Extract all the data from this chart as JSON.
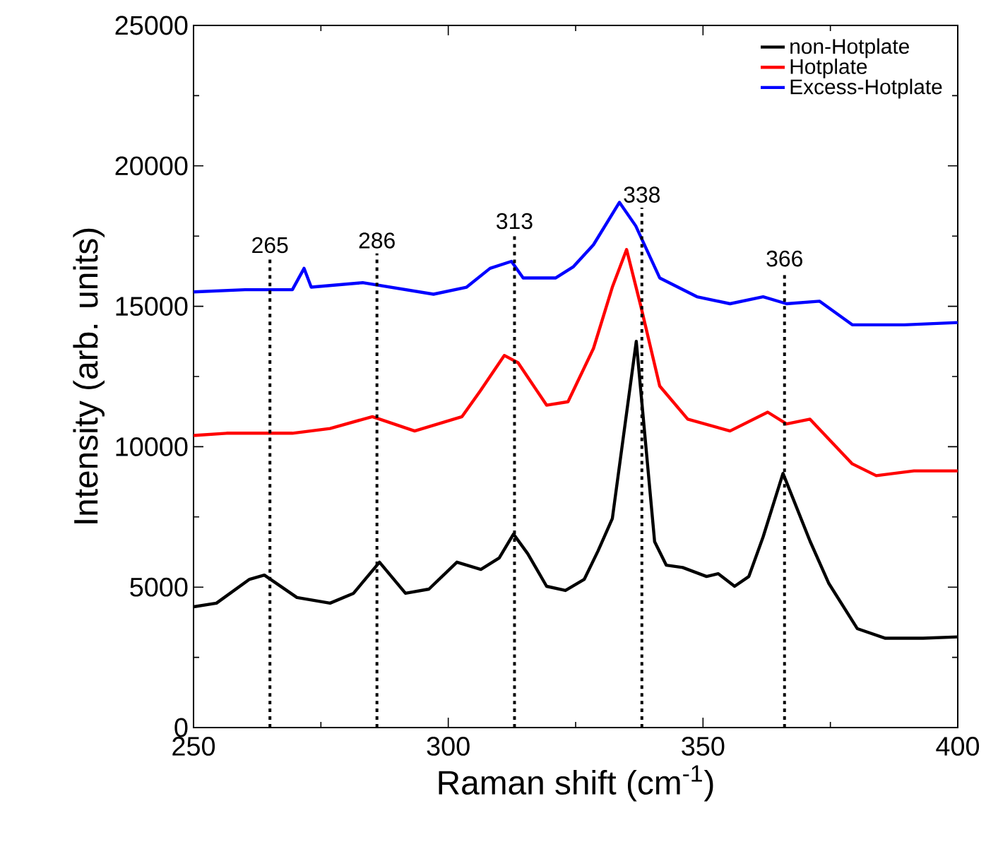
{
  "chart_data": {
    "type": "line",
    "xlabel": "Raman shift (cm$^{-1}$)",
    "ylabel": "Intensity (arb. units)",
    "xlim": [
      250,
      400
    ],
    "xticks": [
      250,
      300,
      350,
      400
    ],
    "ylim": [
      0,
      25000
    ],
    "yticks": [
      0,
      5000,
      10000,
      15000,
      20000,
      25000
    ],
    "grid": false,
    "legend": "top right",
    "marker": "none",
    "line_style": "solid",
    "series": [
      {
        "name": "non-Hotplate",
        "color": "#000000",
        "x": [
          250,
          254.5,
          261,
          263.9,
          270.3,
          276.8,
          281.4,
          286.5,
          291.6,
          296.2,
          301.7,
          306.4,
          310,
          312.8,
          315.6,
          319.3,
          323,
          326.7,
          329.4,
          332.2,
          336.9,
          340.5,
          342.8,
          346,
          350.7,
          353,
          356.2,
          359,
          361.8,
          365.7,
          371,
          374.7,
          380.3,
          385.8,
          393.2,
          400
        ],
        "values": [
          4300,
          4430,
          5280,
          5430,
          4630,
          4430,
          4780,
          5890,
          4780,
          4930,
          5890,
          5630,
          6040,
          6890,
          6190,
          5030,
          4880,
          5280,
          6290,
          7440,
          13750,
          6620,
          5780,
          5700,
          5380,
          5480,
          5030,
          5380,
          6790,
          9050,
          6640,
          5130,
          3520,
          3180,
          3180,
          3230
        ]
      },
      {
        "name": "Hotplate",
        "color": "#ff0000",
        "x": [
          250,
          256.5,
          269.4,
          276.8,
          285.1,
          293.4,
          302.7,
          306.3,
          311,
          313.7,
          319.3,
          323.5,
          328.5,
          332.2,
          335,
          337.8,
          341.5,
          347,
          355.3,
          362.7,
          366.4,
          371,
          379.3,
          384,
          391.4,
          400
        ],
        "values": [
          10400,
          10480,
          10480,
          10650,
          11070,
          10560,
          11070,
          11990,
          13250,
          12990,
          11480,
          11600,
          13500,
          15680,
          17020,
          15000,
          12160,
          10980,
          10560,
          11230,
          10810,
          10980,
          9390,
          8970,
          9140,
          9140
        ]
      },
      {
        "name": "Excess-Hotplate",
        "color": "#0000ff",
        "x": [
          250,
          260.1,
          269.4,
          271.7,
          273.1,
          283.2,
          297.1,
          303.6,
          308.2,
          312.4,
          314.7,
          321.1,
          324.5,
          328.5,
          333.6,
          336.8,
          341.5,
          348.8,
          355.3,
          361.8,
          366.4,
          372.9,
          379.3,
          389.5,
          400
        ],
        "values": [
          15510,
          15590,
          15590,
          16350,
          15680,
          15840,
          15430,
          15680,
          16350,
          16600,
          16010,
          16010,
          16400,
          17190,
          18700,
          17860,
          16010,
          15340,
          15090,
          15340,
          15090,
          15180,
          14340,
          14340,
          14420
        ]
      }
    ],
    "ref_lines": [
      {
        "axis": "x",
        "value": 265,
        "label": "265",
        "line_style": "dotted",
        "color": "#000000"
      },
      {
        "axis": "x",
        "value": 286,
        "label": "286",
        "line_style": "dotted",
        "color": "#000000"
      },
      {
        "axis": "x",
        "value": 313,
        "label": "313",
        "line_style": "dotted",
        "color": "#000000"
      },
      {
        "axis": "x",
        "value": 338,
        "label": "338",
        "line_style": "dotted",
        "color": "#000000"
      },
      {
        "axis": "x",
        "value": 366,
        "label": "366",
        "line_style": "dotted",
        "color": "#000000"
      }
    ]
  }
}
